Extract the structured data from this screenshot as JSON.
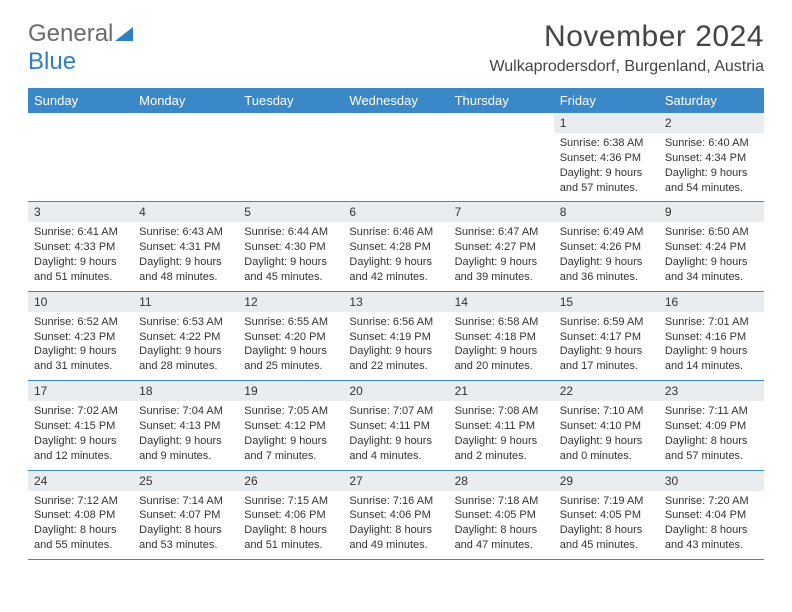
{
  "brand": {
    "part1": "General",
    "part2": "Blue"
  },
  "title": "November 2024",
  "location": "Wulkaprodersdorf, Burgenland, Austria",
  "colors": {
    "header_bg": "#3b88c8",
    "header_text": "#ffffff",
    "daynum_bg": "#e9edef",
    "row_border": "#3b88c8",
    "brand_gray": "#6b6b6b",
    "brand_blue": "#2f7fc2",
    "page_bg": "#ffffff"
  },
  "typography": {
    "title_fontsize": 30,
    "location_fontsize": 16,
    "dayheader_fontsize": 13,
    "daynum_fontsize": 12,
    "body_fontsize": 11
  },
  "day_headers": [
    "Sunday",
    "Monday",
    "Tuesday",
    "Wednesday",
    "Thursday",
    "Friday",
    "Saturday"
  ],
  "weeks": [
    [
      {
        "n": "",
        "sr": "",
        "ss": "",
        "dl": ""
      },
      {
        "n": "",
        "sr": "",
        "ss": "",
        "dl": ""
      },
      {
        "n": "",
        "sr": "",
        "ss": "",
        "dl": ""
      },
      {
        "n": "",
        "sr": "",
        "ss": "",
        "dl": ""
      },
      {
        "n": "",
        "sr": "",
        "ss": "",
        "dl": ""
      },
      {
        "n": "1",
        "sr": "Sunrise: 6:38 AM",
        "ss": "Sunset: 4:36 PM",
        "dl": "Daylight: 9 hours and 57 minutes."
      },
      {
        "n": "2",
        "sr": "Sunrise: 6:40 AM",
        "ss": "Sunset: 4:34 PM",
        "dl": "Daylight: 9 hours and 54 minutes."
      }
    ],
    [
      {
        "n": "3",
        "sr": "Sunrise: 6:41 AM",
        "ss": "Sunset: 4:33 PM",
        "dl": "Daylight: 9 hours and 51 minutes."
      },
      {
        "n": "4",
        "sr": "Sunrise: 6:43 AM",
        "ss": "Sunset: 4:31 PM",
        "dl": "Daylight: 9 hours and 48 minutes."
      },
      {
        "n": "5",
        "sr": "Sunrise: 6:44 AM",
        "ss": "Sunset: 4:30 PM",
        "dl": "Daylight: 9 hours and 45 minutes."
      },
      {
        "n": "6",
        "sr": "Sunrise: 6:46 AM",
        "ss": "Sunset: 4:28 PM",
        "dl": "Daylight: 9 hours and 42 minutes."
      },
      {
        "n": "7",
        "sr": "Sunrise: 6:47 AM",
        "ss": "Sunset: 4:27 PM",
        "dl": "Daylight: 9 hours and 39 minutes."
      },
      {
        "n": "8",
        "sr": "Sunrise: 6:49 AM",
        "ss": "Sunset: 4:26 PM",
        "dl": "Daylight: 9 hours and 36 minutes."
      },
      {
        "n": "9",
        "sr": "Sunrise: 6:50 AM",
        "ss": "Sunset: 4:24 PM",
        "dl": "Daylight: 9 hours and 34 minutes."
      }
    ],
    [
      {
        "n": "10",
        "sr": "Sunrise: 6:52 AM",
        "ss": "Sunset: 4:23 PM",
        "dl": "Daylight: 9 hours and 31 minutes."
      },
      {
        "n": "11",
        "sr": "Sunrise: 6:53 AM",
        "ss": "Sunset: 4:22 PM",
        "dl": "Daylight: 9 hours and 28 minutes."
      },
      {
        "n": "12",
        "sr": "Sunrise: 6:55 AM",
        "ss": "Sunset: 4:20 PM",
        "dl": "Daylight: 9 hours and 25 minutes."
      },
      {
        "n": "13",
        "sr": "Sunrise: 6:56 AM",
        "ss": "Sunset: 4:19 PM",
        "dl": "Daylight: 9 hours and 22 minutes."
      },
      {
        "n": "14",
        "sr": "Sunrise: 6:58 AM",
        "ss": "Sunset: 4:18 PM",
        "dl": "Daylight: 9 hours and 20 minutes."
      },
      {
        "n": "15",
        "sr": "Sunrise: 6:59 AM",
        "ss": "Sunset: 4:17 PM",
        "dl": "Daylight: 9 hours and 17 minutes."
      },
      {
        "n": "16",
        "sr": "Sunrise: 7:01 AM",
        "ss": "Sunset: 4:16 PM",
        "dl": "Daylight: 9 hours and 14 minutes."
      }
    ],
    [
      {
        "n": "17",
        "sr": "Sunrise: 7:02 AM",
        "ss": "Sunset: 4:15 PM",
        "dl": "Daylight: 9 hours and 12 minutes."
      },
      {
        "n": "18",
        "sr": "Sunrise: 7:04 AM",
        "ss": "Sunset: 4:13 PM",
        "dl": "Daylight: 9 hours and 9 minutes."
      },
      {
        "n": "19",
        "sr": "Sunrise: 7:05 AM",
        "ss": "Sunset: 4:12 PM",
        "dl": "Daylight: 9 hours and 7 minutes."
      },
      {
        "n": "20",
        "sr": "Sunrise: 7:07 AM",
        "ss": "Sunset: 4:11 PM",
        "dl": "Daylight: 9 hours and 4 minutes."
      },
      {
        "n": "21",
        "sr": "Sunrise: 7:08 AM",
        "ss": "Sunset: 4:11 PM",
        "dl": "Daylight: 9 hours and 2 minutes."
      },
      {
        "n": "22",
        "sr": "Sunrise: 7:10 AM",
        "ss": "Sunset: 4:10 PM",
        "dl": "Daylight: 9 hours and 0 minutes."
      },
      {
        "n": "23",
        "sr": "Sunrise: 7:11 AM",
        "ss": "Sunset: 4:09 PM",
        "dl": "Daylight: 8 hours and 57 minutes."
      }
    ],
    [
      {
        "n": "24",
        "sr": "Sunrise: 7:12 AM",
        "ss": "Sunset: 4:08 PM",
        "dl": "Daylight: 8 hours and 55 minutes."
      },
      {
        "n": "25",
        "sr": "Sunrise: 7:14 AM",
        "ss": "Sunset: 4:07 PM",
        "dl": "Daylight: 8 hours and 53 minutes."
      },
      {
        "n": "26",
        "sr": "Sunrise: 7:15 AM",
        "ss": "Sunset: 4:06 PM",
        "dl": "Daylight: 8 hours and 51 minutes."
      },
      {
        "n": "27",
        "sr": "Sunrise: 7:16 AM",
        "ss": "Sunset: 4:06 PM",
        "dl": "Daylight: 8 hours and 49 minutes."
      },
      {
        "n": "28",
        "sr": "Sunrise: 7:18 AM",
        "ss": "Sunset: 4:05 PM",
        "dl": "Daylight: 8 hours and 47 minutes."
      },
      {
        "n": "29",
        "sr": "Sunrise: 7:19 AM",
        "ss": "Sunset: 4:05 PM",
        "dl": "Daylight: 8 hours and 45 minutes."
      },
      {
        "n": "30",
        "sr": "Sunrise: 7:20 AM",
        "ss": "Sunset: 4:04 PM",
        "dl": "Daylight: 8 hours and 43 minutes."
      }
    ]
  ]
}
